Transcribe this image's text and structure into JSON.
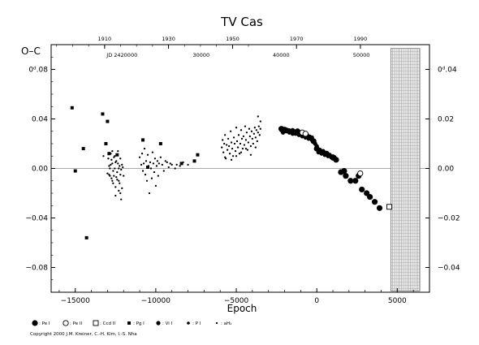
{
  "chart_data": {
    "type": "scatter",
    "title": "TV Cas",
    "xlabel": "Epoch",
    "ylabel": "O–C",
    "xlim": [
      -16500,
      7000
    ],
    "ylim": [
      -0.1,
      0.1
    ],
    "x_ticks": [
      -15000,
      -10000,
      -5000,
      0,
      5000
    ],
    "x_tick_labels": [
      "−15000",
      "−10000",
      "−5000",
      "0",
      "5000"
    ],
    "y_ticks": [
      0.08,
      0.04,
      0.0,
      -0.04,
      -0.08
    ],
    "y_tick_labels": [
      "0ᵈ.08",
      "0.04",
      "0.00",
      "−0.04",
      "−0.08"
    ],
    "top_axis": {
      "years": [
        1910,
        1930,
        1950,
        1970,
        1990
      ],
      "year_epochs": [
        -13180,
        -9210,
        -5230,
        -1260,
        2710
      ],
      "jd_label": "JD 2420000",
      "jd_label_epoch": -12100,
      "jd_ticks": [
        {
          "label": "30000",
          "epoch": -7180
        },
        {
          "label": "40000",
          "epoch": -2210
        },
        {
          "label": "50000",
          "epoch": 2770
        }
      ]
    },
    "right_axis": {
      "tick_values": [
        0.04,
        0.02,
        0.0,
        -0.02,
        -0.04
      ],
      "tick_labels": [
        "0ᵈ.04",
        "0.02",
        "0.00",
        "−0.02",
        "−0.04"
      ],
      "scale": 0.5
    },
    "hatched_region": {
      "x_from": 4600,
      "x_to": 6400,
      "y_from": -0.099,
      "y_to": 0.097
    },
    "zero_line": true,
    "legend": [
      {
        "symbol": "filled-circle-large",
        "label": ": Pe I"
      },
      {
        "symbol": "open-circle",
        "label": ": Pe II"
      },
      {
        "symbol": "open-square",
        "label": ": Ccd II"
      },
      {
        "symbol": "filled-square-small",
        "label": ": Pg I"
      },
      {
        "symbol": "filled-circle-medium",
        "label": ": Vi I"
      },
      {
        "symbol": "filled-circle-small",
        "label": ": P I"
      },
      {
        "symbol": "dot",
        "label": ": aH₁"
      }
    ],
    "copyright": "Copyright 2000 J.M. Kreiner, C.-H. Kim, I.-S. Nha",
    "series": [
      {
        "symbol": "filled-square-small",
        "points": [
          [
            -15200,
            0.049
          ],
          [
            -15000,
            -0.002
          ],
          [
            -14500,
            0.016
          ],
          [
            -14300,
            -0.056
          ],
          [
            -13300,
            0.044
          ],
          [
            -13100,
            0.02
          ],
          [
            -13000,
            0.038
          ],
          [
            -12900,
            0.012
          ],
          [
            -12400,
            0.011
          ],
          [
            -10800,
            0.023
          ],
          [
            -10500,
            0.001
          ],
          [
            -9700,
            0.02
          ],
          [
            -8400,
            0.004
          ],
          [
            -7600,
            0.006
          ],
          [
            -7400,
            0.011
          ]
        ]
      },
      {
        "symbol": "dot",
        "points": [
          [
            -13250,
            0.01
          ],
          [
            -13000,
            -0.004
          ],
          [
            -12950,
            0.008
          ],
          [
            -12900,
            0.002
          ],
          [
            -12850,
            -0.006
          ],
          [
            -12800,
            0.012
          ],
          [
            -12750,
            -0.008
          ],
          [
            -12700,
            0.004
          ],
          [
            -12650,
            -0.012
          ],
          [
            -12600,
            0.009
          ],
          [
            -12550,
            0.0
          ],
          [
            -12500,
            -0.015
          ],
          [
            -12450,
            0.006
          ],
          [
            -12400,
            -0.003
          ],
          [
            -12350,
            0.014
          ],
          [
            -12300,
            -0.018
          ],
          [
            -12250,
            0.002
          ],
          [
            -12200,
            -0.02
          ],
          [
            -12150,
            -0.025
          ],
          [
            -12100,
            0.003
          ],
          [
            -12900,
            -0.005
          ],
          [
            -12800,
            0.003
          ],
          [
            -12700,
            -0.01
          ],
          [
            -12600,
            -0.006
          ],
          [
            -12500,
            0.005
          ],
          [
            -12400,
            -0.009
          ],
          [
            -12300,
            0.0
          ],
          [
            -12200,
            -0.005
          ],
          [
            -12750,
            0.007
          ],
          [
            -12650,
            -0.002
          ],
          [
            -12550,
            0.01
          ],
          [
            -12450,
            -0.007
          ],
          [
            -12350,
            0.004
          ],
          [
            -12250,
            -0.012
          ],
          [
            -12150,
            -0.001
          ],
          [
            -12050,
            0.001
          ],
          [
            -12000,
            -0.006
          ],
          [
            -12850,
            0.0
          ],
          [
            -12700,
            0.014
          ],
          [
            -12500,
            -0.022
          ],
          [
            -12300,
            -0.01
          ],
          [
            -12200,
            0.008
          ],
          [
            -12100,
            -0.016
          ],
          [
            -11000,
            0.009
          ],
          [
            -10900,
            0.003
          ],
          [
            -10850,
            0.012
          ],
          [
            -10800,
            -0.002
          ],
          [
            -10750,
            0.004
          ],
          [
            -10700,
            0.016
          ],
          [
            -10650,
            -0.005
          ],
          [
            -10600,
            0.006
          ],
          [
            -10550,
            -0.01
          ],
          [
            -10500,
            0.011
          ],
          [
            -10450,
            0.002
          ],
          [
            -10400,
            -0.02
          ],
          [
            -10350,
            0.005
          ],
          [
            -10300,
            0.0
          ],
          [
            -10250,
            -0.008
          ],
          [
            -10200,
            0.013
          ],
          [
            -10150,
            0.004
          ],
          [
            -10100,
            -0.003
          ],
          [
            -10050,
            0.008
          ],
          [
            -10000,
            -0.014
          ],
          [
            -9950,
            0.002
          ],
          [
            -9900,
            0.006
          ],
          [
            -9850,
            -0.006
          ],
          [
            -9800,
            0.004
          ],
          [
            -9700,
            0.009
          ],
          [
            -9600,
            0.003
          ],
          [
            -9500,
            -0.002
          ],
          [
            -9400,
            0.006
          ],
          [
            -9300,
            0.005
          ],
          [
            -9200,
            0.001
          ],
          [
            -9100,
            0.004
          ],
          [
            -9000,
            0.003
          ],
          [
            -8800,
            0.0
          ],
          [
            -8700,
            0.003
          ],
          [
            -8500,
            0.002
          ],
          [
            -8300,
            0.005
          ],
          [
            -8000,
            0.003
          ],
          [
            -5900,
            0.017
          ],
          [
            -5850,
            0.023
          ],
          [
            -5800,
            0.013
          ],
          [
            -5750,
            0.02
          ],
          [
            -5700,
            0.027
          ],
          [
            -5650,
            0.008
          ],
          [
            -5600,
            0.019
          ],
          [
            -5550,
            0.015
          ],
          [
            -5500,
            0.024
          ],
          [
            -5450,
            0.018
          ],
          [
            -5400,
            0.012
          ],
          [
            -5350,
            0.03
          ],
          [
            -5300,
            0.021
          ],
          [
            -5250,
            0.016
          ],
          [
            -5200,
            0.01
          ],
          [
            -5150,
            0.025
          ],
          [
            -5100,
            0.02
          ],
          [
            -5050,
            0.014
          ],
          [
            -5000,
            0.033
          ],
          [
            -4950,
            0.022
          ],
          [
            -4900,
            0.017
          ],
          [
            -4850,
            0.027
          ],
          [
            -4800,
            0.012
          ],
          [
            -4750,
            0.02
          ],
          [
            -4700,
            0.031
          ],
          [
            -4650,
            0.024
          ],
          [
            -4600,
            0.016
          ],
          [
            -4550,
            0.026
          ],
          [
            -4500,
            0.019
          ],
          [
            -4450,
            0.034
          ],
          [
            -4400,
            0.023
          ],
          [
            -4350,
            0.029
          ],
          [
            -4300,
            0.015
          ],
          [
            -4250,
            0.021
          ],
          [
            -4200,
            0.032
          ],
          [
            -4150,
            0.026
          ],
          [
            -4100,
            0.018
          ],
          [
            -4050,
            0.03
          ],
          [
            -4000,
            0.024
          ],
          [
            -3950,
            0.02
          ],
          [
            -3900,
            0.028
          ],
          [
            -3850,
            0.033
          ],
          [
            -3800,
            0.025
          ],
          [
            -3750,
            0.031
          ],
          [
            -3700,
            0.022
          ],
          [
            -3650,
            0.029
          ],
          [
            -3600,
            0.034
          ],
          [
            -3550,
            0.027
          ],
          [
            -3500,
            0.032
          ],
          [
            -5700,
            0.009
          ],
          [
            -5300,
            0.007
          ],
          [
            -5000,
            0.01
          ],
          [
            -4700,
            0.013
          ],
          [
            -4400,
            0.016
          ],
          [
            -4100,
            0.011
          ],
          [
            -3800,
            0.017
          ],
          [
            -3650,
            0.042
          ],
          [
            -3500,
            0.038
          ]
        ]
      },
      {
        "symbol": "filled-circle-medium",
        "points": [
          [
            -2200,
            0.031
          ],
          [
            -2100,
            0.029
          ],
          [
            -2000,
            0.032
          ],
          [
            -1900,
            0.03
          ],
          [
            -1800,
            0.031
          ],
          [
            -1700,
            0.029
          ],
          [
            -1600,
            0.03
          ],
          [
            -1500,
            0.028
          ],
          [
            -1400,
            0.03
          ],
          [
            -1300,
            0.028
          ],
          [
            -1200,
            0.029
          ],
          [
            -1100,
            0.027
          ],
          [
            -1000,
            0.028
          ],
          [
            -900,
            0.026
          ],
          [
            -800,
            0.027
          ],
          [
            -700,
            0.025
          ],
          [
            -600,
            0.026
          ],
          [
            -500,
            0.024
          ],
          [
            -400,
            0.025
          ],
          [
            -300,
            0.023
          ],
          [
            -200,
            0.022
          ],
          [
            -100,
            0.02
          ],
          [
            0,
            0.018
          ],
          [
            100,
            0.013
          ],
          [
            200,
            0.015
          ],
          [
            300,
            0.012
          ],
          [
            400,
            0.014
          ],
          [
            500,
            0.011
          ],
          [
            600,
            0.012
          ],
          [
            700,
            0.01
          ],
          [
            800,
            0.011
          ],
          [
            900,
            0.009
          ],
          [
            1000,
            0.008
          ],
          [
            1100,
            0.009
          ],
          [
            1200,
            0.007
          ],
          [
            -1500,
            0.031
          ],
          [
            -1000,
            0.029
          ],
          [
            -600,
            0.027
          ],
          [
            -300,
            0.025
          ],
          [
            200,
            0.013
          ]
        ]
      },
      {
        "symbol": "filled-circle-large",
        "points": [
          [
            -2200,
            0.032
          ],
          [
            -1950,
            0.031
          ],
          [
            -1700,
            0.03
          ],
          [
            -1450,
            0.029
          ],
          [
            -1200,
            0.03
          ],
          [
            -950,
            0.028
          ],
          [
            -700,
            0.027
          ],
          [
            -450,
            0.025
          ],
          [
            -200,
            0.022
          ],
          [
            0,
            0.016
          ],
          [
            300,
            0.013
          ],
          [
            600,
            0.012
          ],
          [
            1000,
            0.009
          ],
          [
            1200,
            0.007
          ],
          [
            1500,
            -0.003
          ],
          [
            1700,
            -0.002
          ],
          [
            2100,
            -0.01
          ],
          [
            2400,
            -0.01
          ],
          [
            2800,
            -0.017
          ],
          [
            3100,
            -0.02
          ],
          [
            3300,
            -0.023
          ],
          [
            3600,
            -0.027
          ],
          [
            3900,
            -0.032
          ],
          [
            2600,
            -0.006
          ],
          [
            1800,
            -0.006
          ]
        ]
      },
      {
        "symbol": "open-circle",
        "points": [
          [
            -900,
            0.029
          ],
          [
            2700,
            -0.004
          ],
          [
            -700,
            0.028
          ]
        ]
      },
      {
        "symbol": "open-square",
        "points": [
          [
            4500,
            -0.031
          ]
        ]
      }
    ]
  }
}
